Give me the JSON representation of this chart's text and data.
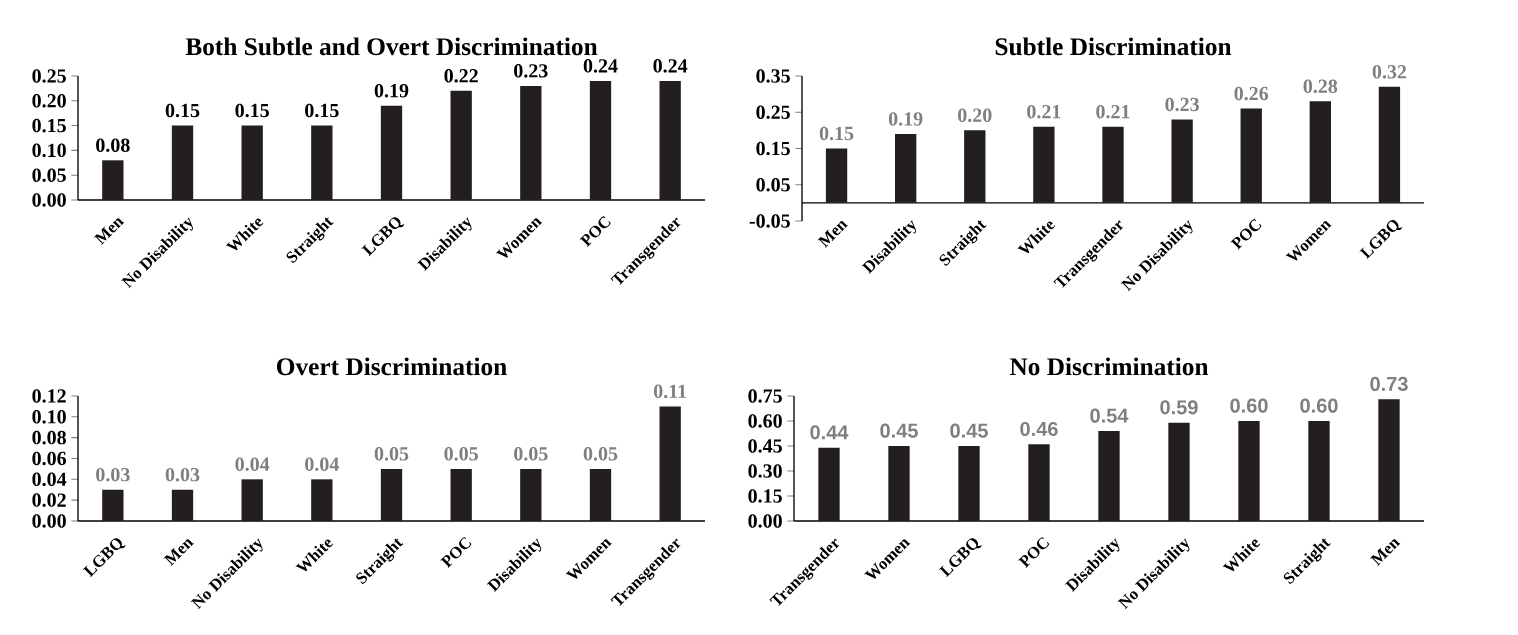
{
  "chart_data": [
    {
      "type": "bar",
      "title": "Both Subtle and Overt Discrimination",
      "categories": [
        "Men",
        "No Disability",
        "White",
        "Straight",
        "LGBQ",
        "Disability",
        "Women",
        "POC",
        "Transgender"
      ],
      "values": [
        0.08,
        0.15,
        0.15,
        0.15,
        0.19,
        0.22,
        0.23,
        0.24,
        0.24
      ],
      "value_labels": [
        "0.08",
        "0.15",
        "0.15",
        "0.15",
        "0.19",
        "0.22",
        "0.23",
        "0.24",
        "0.24"
      ],
      "color": "#231f20",
      "ylim": [
        0,
        0.25
      ],
      "yticks": [
        {
          "value": 0,
          "label": "0.00"
        },
        {
          "value": 0.05,
          "label": "0.05"
        },
        {
          "value": 0.1,
          "label": "0.10"
        },
        {
          "value": 0.15,
          "label": "0.15"
        },
        {
          "value": 0.2,
          "label": "0.20"
        },
        {
          "value": 0.25,
          "label": "0.25"
        }
      ]
    },
    {
      "type": "bar",
      "title": "Subtle Discrimination",
      "categories": [
        "Men",
        "Disability",
        "Straight",
        "White",
        "Transgender",
        "No Disability",
        "POC",
        "Women",
        "LGBQ"
      ],
      "values": [
        0.15,
        0.19,
        0.2,
        0.21,
        0.21,
        0.23,
        0.26,
        0.28,
        0.32
      ],
      "value_labels": [
        "0.15",
        "0.19",
        "0.20",
        "0.21",
        "0.21",
        "0.23",
        "0.26",
        "0.28",
        "0.32"
      ],
      "color": "#231f20",
      "ylim": [
        -0.05,
        0.35
      ],
      "yticks": [
        {
          "value": -0.05,
          "label": "-0.05"
        },
        {
          "value": 0.05,
          "label": "0.05"
        },
        {
          "value": 0.15,
          "label": "0.15"
        },
        {
          "value": 0.25,
          "label": "0.25"
        },
        {
          "value": 0.35,
          "label": "0.35"
        }
      ]
    },
    {
      "type": "bar",
      "title": "Overt Discrimination",
      "categories": [
        "LGBQ",
        "Men",
        "No Disability",
        "White",
        "Straight",
        "POC",
        "Disability",
        "Women",
        "Transgender"
      ],
      "values": [
        0.03,
        0.03,
        0.04,
        0.04,
        0.05,
        0.05,
        0.05,
        0.05,
        0.11
      ],
      "value_labels": [
        "0.03",
        "0.03",
        "0.04",
        "0.04",
        "0.05",
        "0.05",
        "0.05",
        "0.05",
        "0.11"
      ],
      "color": "#231f20",
      "ylim": [
        0,
        0.12
      ],
      "yticks": [
        {
          "value": 0,
          "label": "0.00"
        },
        {
          "value": 0.02,
          "label": "0.02"
        },
        {
          "value": 0.04,
          "label": "0.04"
        },
        {
          "value": 0.06,
          "label": "0.06"
        },
        {
          "value": 0.08,
          "label": "0.08"
        },
        {
          "value": 0.1,
          "label": "0.10"
        },
        {
          "value": 0.12,
          "label": "0.12"
        }
      ]
    },
    {
      "type": "bar",
      "title": "No Discrimination",
      "categories": [
        "Transgender",
        "Women",
        "LGBQ",
        "POC",
        "Disability",
        "No Disability",
        "White",
        "Straight",
        "Men"
      ],
      "values": [
        0.44,
        0.45,
        0.45,
        0.46,
        0.54,
        0.59,
        0.6,
        0.6,
        0.73
      ],
      "value_labels": [
        "0.44",
        "0.45",
        "0.45",
        "0.46",
        "0.54",
        "0.59",
        "0.60",
        "0.60",
        "0.73"
      ],
      "color": "#231f20",
      "ylim": [
        0,
        0.75
      ],
      "yticks": [
        {
          "value": 0,
          "label": "0.00"
        },
        {
          "value": 0.15,
          "label": "0.15"
        },
        {
          "value": 0.3,
          "label": "0.30"
        },
        {
          "value": 0.45,
          "label": "0.45"
        },
        {
          "value": 0.6,
          "label": "0.60"
        },
        {
          "value": 0.75,
          "label": "0.75"
        }
      ]
    }
  ]
}
